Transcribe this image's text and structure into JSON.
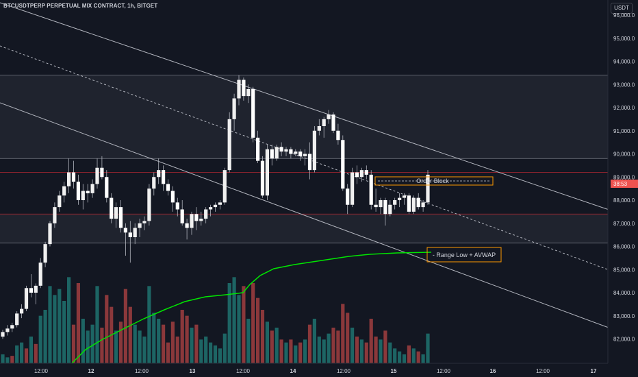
{
  "header": {
    "title": "BTCUSDTPERP PERPETUAL MIX CONTRACT, 1h, BITGET",
    "currency": "USDT"
  },
  "price_axis": {
    "countdown_label": "38:53"
  },
  "colors": {
    "background": "#131722",
    "up": "#f0f0f0",
    "down": "#ffffff",
    "vol_up": "#26a69a",
    "vol_down": "#ef5350",
    "avwap": "#00e600",
    "zone_fill": "#2a2e39",
    "order_block": "#ff9800"
  },
  "chart_data": {
    "type": "candlestick",
    "y_axis": {
      "range": [
        81500,
        97000
      ],
      "ticks": [
        "82,000.0",
        "83,000.0",
        "84,000.0",
        "85,000.0",
        "86,000.0",
        "87,000.0",
        "88,000.0",
        "89,000.0",
        "90,000.0",
        "91,000.0",
        "92,000.0",
        "93,000.0",
        "94,000.0",
        "95,000.0",
        "96,000.0"
      ]
    },
    "x_axis": {
      "tick_labels": [
        "12:00",
        "12",
        "12:00",
        "13",
        "12:00",
        "14",
        "12:00",
        "15",
        "12:00",
        "16",
        "12:00",
        "17"
      ]
    },
    "candles": [
      [
        82100,
        82400,
        82000,
        82300
      ],
      [
        82300,
        82600,
        82150,
        82450
      ],
      [
        82450,
        82700,
        82300,
        82600
      ],
      [
        82600,
        83200,
        82500,
        83100
      ],
      [
        83100,
        83500,
        82900,
        83300
      ],
      [
        83300,
        84300,
        83200,
        84200
      ],
      [
        84200,
        84800,
        83800,
        84000
      ],
      [
        84000,
        84400,
        83500,
        84300
      ],
      [
        84300,
        85500,
        84200,
        85300
      ],
      [
        85300,
        86200,
        85100,
        86100
      ],
      [
        86100,
        87100,
        86000,
        87000
      ],
      [
        87000,
        87900,
        86800,
        87700
      ],
      [
        87700,
        88400,
        87500,
        88200
      ],
      [
        88200,
        88800,
        87900,
        88600
      ],
      [
        88600,
        89800,
        88300,
        89200
      ],
      [
        89200,
        89700,
        88500,
        88800
      ],
      [
        88800,
        89100,
        87800,
        88000
      ],
      [
        88000,
        88700,
        87600,
        88400
      ],
      [
        88400,
        88700,
        87900,
        88300
      ],
      [
        88300,
        88900,
        88100,
        88700
      ],
      [
        88700,
        89800,
        88500,
        89400
      ],
      [
        89400,
        89900,
        88900,
        89000
      ],
      [
        89000,
        89300,
        87900,
        88100
      ],
      [
        88100,
        88300,
        87000,
        87200
      ],
      [
        87200,
        87900,
        86800,
        87700
      ],
      [
        87700,
        88000,
        86600,
        86800
      ],
      [
        86800,
        87000,
        85600,
        86600
      ],
      [
        86600,
        87100,
        85300,
        86400
      ],
      [
        86400,
        87000,
        86100,
        86800
      ],
      [
        86800,
        87200,
        86400,
        87000
      ],
      [
        87000,
        87300,
        86700,
        87100
      ],
      [
        87100,
        88700,
        86900,
        88500
      ],
      [
        88500,
        89200,
        88200,
        89000
      ],
      [
        89000,
        89800,
        88700,
        89300
      ],
      [
        89300,
        89500,
        88400,
        88700
      ],
      [
        88700,
        88900,
        88200,
        88400
      ],
      [
        88400,
        88600,
        87500,
        87900
      ],
      [
        87900,
        88100,
        87300,
        87600
      ],
      [
        87600,
        88000,
        86900,
        87000
      ],
      [
        87000,
        87200,
        86300,
        86800
      ],
      [
        86800,
        87500,
        86500,
        87400
      ],
      [
        87400,
        87700,
        86700,
        87100
      ],
      [
        87100,
        87500,
        86900,
        87200
      ],
      [
        87200,
        87700,
        87000,
        87600
      ],
      [
        87600,
        87800,
        87300,
        87700
      ],
      [
        87700,
        87900,
        87500,
        87800
      ],
      [
        87800,
        88000,
        87600,
        87900
      ],
      [
        87900,
        89400,
        87800,
        89300
      ],
      [
        89300,
        91800,
        89200,
        91500
      ],
      [
        91500,
        92600,
        91000,
        92400
      ],
      [
        92400,
        93400,
        92100,
        93200
      ],
      [
        93200,
        93300,
        92300,
        92500
      ],
      [
        92500,
        93000,
        92200,
        92800
      ],
      [
        92800,
        92900,
        90500,
        90700
      ],
      [
        90700,
        91000,
        89600,
        89700
      ],
      [
        89700,
        89900,
        88100,
        88200
      ],
      [
        88200,
        90400,
        88000,
        90200
      ],
      [
        90200,
        90400,
        89500,
        89800
      ],
      [
        89800,
        90400,
        89700,
        90300
      ],
      [
        90300,
        90500,
        89900,
        90100
      ],
      [
        90100,
        90300,
        89900,
        90200
      ],
      [
        90200,
        90300,
        89800,
        90000
      ],
      [
        90000,
        90200,
        89900,
        90100
      ],
      [
        90100,
        90200,
        89700,
        89900
      ],
      [
        89900,
        90200,
        89500,
        90000
      ],
      [
        90000,
        90500,
        88900,
        89300
      ],
      [
        89300,
        91200,
        89200,
        91000
      ],
      [
        91000,
        91500,
        90800,
        91200
      ],
      [
        91200,
        91600,
        90700,
        91500
      ],
      [
        91500,
        91900,
        91300,
        91700
      ],
      [
        91700,
        91800,
        90900,
        91000
      ],
      [
        91000,
        91300,
        90400,
        90600
      ],
      [
        90600,
        90800,
        88400,
        88500
      ],
      [
        88500,
        88700,
        87400,
        87800
      ],
      [
        87800,
        89400,
        87700,
        89200
      ],
      [
        89200,
        89500,
        88700,
        89000
      ],
      [
        89000,
        89400,
        88800,
        89300
      ],
      [
        89300,
        89500,
        88900,
        89100
      ],
      [
        89100,
        89300,
        87600,
        87800
      ],
      [
        87800,
        88500,
        87500,
        87700
      ],
      [
        87700,
        88100,
        87400,
        88000
      ],
      [
        88000,
        88100,
        86900,
        87400
      ],
      [
        87400,
        88000,
        87300,
        87800
      ],
      [
        87800,
        88100,
        87600,
        88000
      ],
      [
        88000,
        88300,
        87700,
        88100
      ],
      [
        88100,
        88300,
        87800,
        88200
      ],
      [
        88200,
        88300,
        87400,
        87500
      ],
      [
        87500,
        88200,
        87400,
        88100
      ],
      [
        88100,
        88300,
        87600,
        87700
      ],
      [
        87700,
        88000,
        87500,
        87900
      ],
      [
        87900,
        89300,
        87800,
        89100
      ]
    ],
    "volumes": [
      [
        300,
        1
      ],
      [
        200,
        1
      ],
      [
        250,
        0
      ],
      [
        600,
        1
      ],
      [
        700,
        1
      ],
      [
        500,
        0
      ],
      [
        900,
        1
      ],
      [
        650,
        0
      ],
      [
        1600,
        1
      ],
      [
        1800,
        1
      ],
      [
        2600,
        1
      ],
      [
        2300,
        1
      ],
      [
        2500,
        1
      ],
      [
        2100,
        1
      ],
      [
        2900,
        1
      ],
      [
        1300,
        0
      ],
      [
        2700,
        0
      ],
      [
        1500,
        1
      ],
      [
        1100,
        1
      ],
      [
        1300,
        1
      ],
      [
        2600,
        1
      ],
      [
        1200,
        0
      ],
      [
        2300,
        0
      ],
      [
        1900,
        0
      ],
      [
        1100,
        1
      ],
      [
        1400,
        0
      ],
      [
        2500,
        0
      ],
      [
        1900,
        0
      ],
      [
        1300,
        1
      ],
      [
        1100,
        1
      ],
      [
        900,
        1
      ],
      [
        2600,
        1
      ],
      [
        1700,
        1
      ],
      [
        1500,
        1
      ],
      [
        1300,
        0
      ],
      [
        700,
        0
      ],
      [
        1400,
        0
      ],
      [
        900,
        0
      ],
      [
        1800,
        0
      ],
      [
        1600,
        0
      ],
      [
        1200,
        1
      ],
      [
        1300,
        0
      ],
      [
        800,
        1
      ],
      [
        900,
        1
      ],
      [
        700,
        1
      ],
      [
        600,
        1
      ],
      [
        500,
        1
      ],
      [
        1000,
        1
      ],
      [
        2700,
        1
      ],
      [
        2900,
        1
      ],
      [
        2300,
        1
      ],
      [
        2600,
        0
      ],
      [
        1500,
        1
      ],
      [
        2700,
        0
      ],
      [
        2200,
        0
      ],
      [
        1800,
        0
      ],
      [
        1400,
        1
      ],
      [
        1100,
        0
      ],
      [
        1200,
        1
      ],
      [
        800,
        0
      ],
      [
        700,
        1
      ],
      [
        800,
        0
      ],
      [
        600,
        1
      ],
      [
        700,
        0
      ],
      [
        800,
        1
      ],
      [
        1300,
        0
      ],
      [
        1500,
        1
      ],
      [
        900,
        1
      ],
      [
        800,
        1
      ],
      [
        1000,
        1
      ],
      [
        1200,
        0
      ],
      [
        1100,
        0
      ],
      [
        2000,
        0
      ],
      [
        1700,
        0
      ],
      [
        1200,
        1
      ],
      [
        900,
        0
      ],
      [
        800,
        1
      ],
      [
        700,
        0
      ],
      [
        1500,
        0
      ],
      [
        900,
        0
      ],
      [
        800,
        1
      ],
      [
        1100,
        0
      ],
      [
        700,
        1
      ],
      [
        500,
        1
      ],
      [
        400,
        1
      ],
      [
        300,
        1
      ],
      [
        600,
        0
      ],
      [
        500,
        1
      ],
      [
        400,
        0
      ],
      [
        300,
        1
      ],
      [
        1000,
        1
      ]
    ],
    "annotations": [
      {
        "type": "label",
        "text": "Order Block",
        "price": 89300
      },
      {
        "type": "label",
        "text": "Range Low + AVWAP",
        "price": 86200
      }
    ]
  }
}
